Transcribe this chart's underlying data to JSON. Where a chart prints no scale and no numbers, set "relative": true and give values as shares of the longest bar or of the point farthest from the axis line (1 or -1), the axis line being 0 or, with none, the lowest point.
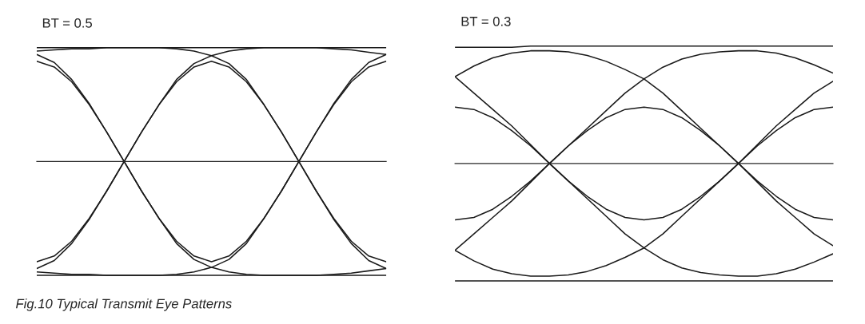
{
  "chart_data": [
    {
      "type": "line",
      "title": "BT = 0.5",
      "relative": true,
      "tick_labels": false,
      "annotations": [
        "Fig.10 Typical Transmit Eye Patterns"
      ],
      "categories": [
        null,
        null,
        null,
        null,
        null,
        null,
        null,
        null,
        null,
        null,
        null,
        null,
        null,
        null,
        null,
        null,
        null,
        null,
        null,
        null,
        null
      ],
      "series": [
        {
          "color": "#1a1a1a",
          "values": [
            1.0,
            1.0,
            1.0,
            1.0,
            1.0,
            1.0,
            1.0,
            1.0,
            1.0,
            1.0,
            1.0,
            1.0,
            1.0,
            1.0,
            1.0,
            1.0,
            1.0,
            1.0,
            1.0,
            1.0,
            1.0
          ]
        },
        {
          "color": "#1a1a1a",
          "values": [
            -1.0,
            -1.0,
            -1.0,
            -1.0,
            -1.0,
            -1.0,
            -1.0,
            -1.0,
            -1.0,
            -1.0,
            -1.0,
            -1.0,
            -1.0,
            -1.0,
            -1.0,
            -1.0,
            -1.0,
            -1.0,
            -1.0,
            -1.0,
            -1.0
          ]
        },
        {
          "color": "#1a1a1a",
          "values": [
            0.88,
            0.83,
            0.7,
            0.5,
            0.26,
            0,
            -0.26,
            -0.5,
            -0.7,
            -0.83,
            -0.88,
            -0.83,
            -0.7,
            -0.5,
            -0.26,
            0,
            0.26,
            0.5,
            0.7,
            0.83,
            0.88
          ]
        },
        {
          "color": "#1a1a1a",
          "values": [
            -0.88,
            -0.83,
            -0.7,
            -0.5,
            -0.26,
            0,
            0.26,
            0.5,
            0.7,
            0.83,
            0.88,
            0.83,
            0.7,
            0.5,
            0.26,
            0,
            -0.26,
            -0.5,
            -0.7,
            -0.83,
            -0.88
          ]
        },
        {
          "color": "#1a1a1a",
          "values": [
            0.94,
            0.87,
            0.72,
            0.51,
            0.26,
            0,
            -0.26,
            -0.5,
            -0.72,
            -0.86,
            -0.93,
            -0.97,
            -0.99,
            -1.0,
            -1.0,
            -1.0,
            -1.0,
            -0.99,
            -0.98,
            -0.96,
            -0.94
          ]
        },
        {
          "color": "#1a1a1a",
          "values": [
            -0.94,
            -0.87,
            -0.72,
            -0.51,
            -0.26,
            0,
            0.26,
            0.5,
            0.72,
            0.86,
            0.93,
            0.97,
            0.99,
            1.0,
            1.0,
            1.0,
            1.0,
            0.99,
            0.98,
            0.96,
            0.94
          ]
        },
        {
          "color": "#1a1a1a",
          "values": [
            0.97,
            0.98,
            0.99,
            0.99,
            1.0,
            1.0,
            1.0,
            1.0,
            0.99,
            0.97,
            0.93,
            0.86,
            0.72,
            0.5,
            0.26,
            0,
            -0.26,
            -0.51,
            -0.72,
            -0.87,
            -0.94
          ]
        },
        {
          "color": "#1a1a1a",
          "values": [
            -0.97,
            -0.98,
            -0.99,
            -0.99,
            -1.0,
            -1.0,
            -1.0,
            -1.0,
            -0.99,
            -0.97,
            -0.93,
            -0.86,
            -0.72,
            -0.5,
            -0.26,
            0,
            0.26,
            0.51,
            0.72,
            0.87,
            0.94
          ]
        }
      ]
    },
    {
      "type": "line",
      "title": "BT = 0.3",
      "relative": true,
      "tick_labels": false,
      "categories": [
        null,
        null,
        null,
        null,
        null,
        null,
        null,
        null,
        null,
        null,
        null,
        null,
        null,
        null,
        null,
        null,
        null,
        null,
        null,
        null,
        null
      ],
      "series": [
        {
          "color": "#1a1a1a",
          "values": [
            0.99,
            0.99,
            0.99,
            0.99,
            1.0,
            1.0,
            1.0,
            1.0,
            1.0,
            1.0,
            1.0,
            1.0,
            1.0,
            1.0,
            1.0,
            1.0,
            1.0,
            1.0,
            1.0,
            1.0,
            1.0
          ]
        },
        {
          "color": "#1a1a1a",
          "values": [
            -1.0,
            -1.0,
            -1.0,
            -1.0,
            -1.0,
            -1.0,
            -1.0,
            -1.0,
            -1.0,
            -1.0,
            -1.0,
            -1.0,
            -1.0,
            -1.0,
            -1.0,
            -1.0,
            -1.0,
            -1.0,
            -1.0,
            -1.0,
            -1.0
          ]
        },
        {
          "color": "#1a1a1a",
          "values": [
            0.48,
            0.46,
            0.39,
            0.28,
            0.15,
            0,
            -0.15,
            -0.28,
            -0.39,
            -0.46,
            -0.48,
            -0.46,
            -0.39,
            -0.28,
            -0.15,
            0,
            0.15,
            0.28,
            0.39,
            0.46,
            0.48
          ]
        },
        {
          "color": "#1a1a1a",
          "values": [
            -0.48,
            -0.46,
            -0.39,
            -0.28,
            -0.15,
            0,
            0.15,
            0.28,
            0.39,
            0.46,
            0.48,
            0.46,
            0.39,
            0.28,
            0.15,
            0,
            -0.15,
            -0.28,
            -0.39,
            -0.46,
            -0.48
          ]
        },
        {
          "color": "#1a1a1a",
          "values": [
            0.74,
            0.83,
            0.9,
            0.94,
            0.96,
            0.96,
            0.95,
            0.92,
            0.87,
            0.8,
            0.72,
            0.6,
            0.45,
            0.3,
            0.15,
            0,
            -0.16,
            -0.32,
            -0.46,
            -0.6,
            -0.7
          ]
        },
        {
          "color": "#1a1a1a",
          "values": [
            -0.74,
            -0.83,
            -0.9,
            -0.94,
            -0.96,
            -0.96,
            -0.95,
            -0.92,
            -0.87,
            -0.8,
            -0.72,
            -0.6,
            -0.45,
            -0.3,
            -0.15,
            0,
            0.16,
            0.32,
            0.46,
            0.6,
            0.7
          ]
        },
        {
          "color": "#1a1a1a",
          "values": [
            -0.74,
            -0.6,
            -0.46,
            -0.32,
            -0.16,
            0,
            0.15,
            0.3,
            0.45,
            0.6,
            0.72,
            0.82,
            0.89,
            0.93,
            0.95,
            0.96,
            0.96,
            0.94,
            0.9,
            0.84,
            0.77
          ]
        },
        {
          "color": "#1a1a1a",
          "values": [
            0.74,
            0.6,
            0.46,
            0.32,
            0.16,
            0,
            -0.15,
            -0.3,
            -0.45,
            -0.6,
            -0.72,
            -0.82,
            -0.89,
            -0.93,
            -0.95,
            -0.96,
            -0.96,
            -0.94,
            -0.9,
            -0.84,
            -0.77
          ]
        }
      ]
    }
  ]
}
